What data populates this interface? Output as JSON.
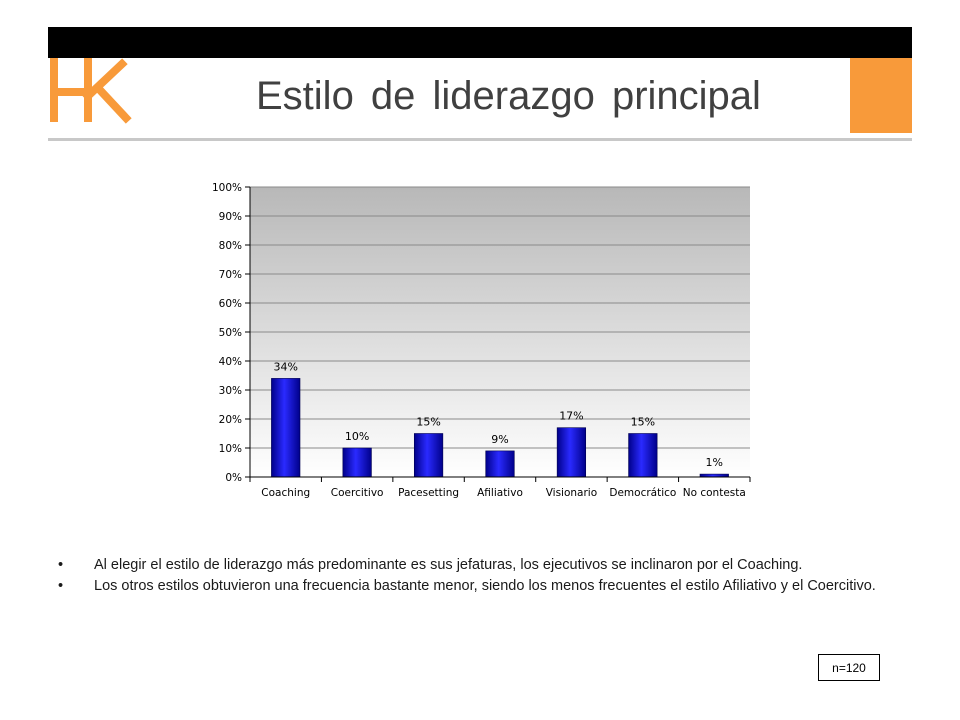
{
  "header": {
    "logo_text": "HK",
    "title": "Estilo de liderazgo principal"
  },
  "colors": {
    "top_bar": "#000000",
    "accent": "#f89a3a",
    "bar": "#1515c8",
    "plot_area": "#c0c0c0"
  },
  "chart_data": {
    "type": "bar",
    "categories": [
      "Coaching",
      "Coercitivo",
      "Pacesetting",
      "Afiliativo",
      "Visionario",
      "Democrático",
      "No contesta"
    ],
    "values": [
      34,
      10,
      15,
      9,
      17,
      15,
      1
    ],
    "data_labels": [
      "34%",
      "10%",
      "15%",
      "9%",
      "17%",
      "15%",
      "1%"
    ],
    "ylim": [
      0,
      100
    ],
    "yticks": [
      "0%",
      "10%",
      "20%",
      "30%",
      "40%",
      "50%",
      "60%",
      "70%",
      "80%",
      "90%",
      "100%"
    ],
    "grid": true,
    "legend": "none"
  },
  "bullets": [
    "Al elegir el estilo de liderazgo más predominante es sus jefaturas, los ejecutivos se inclinaron por el Coaching.",
    "Los otros estilos obtuvieron una frecuencia bastante menor, siendo los menos frecuentes el estilo Afiliativo y el Coercitivo."
  ],
  "bullet_char": "•",
  "sample_size": "n=120"
}
